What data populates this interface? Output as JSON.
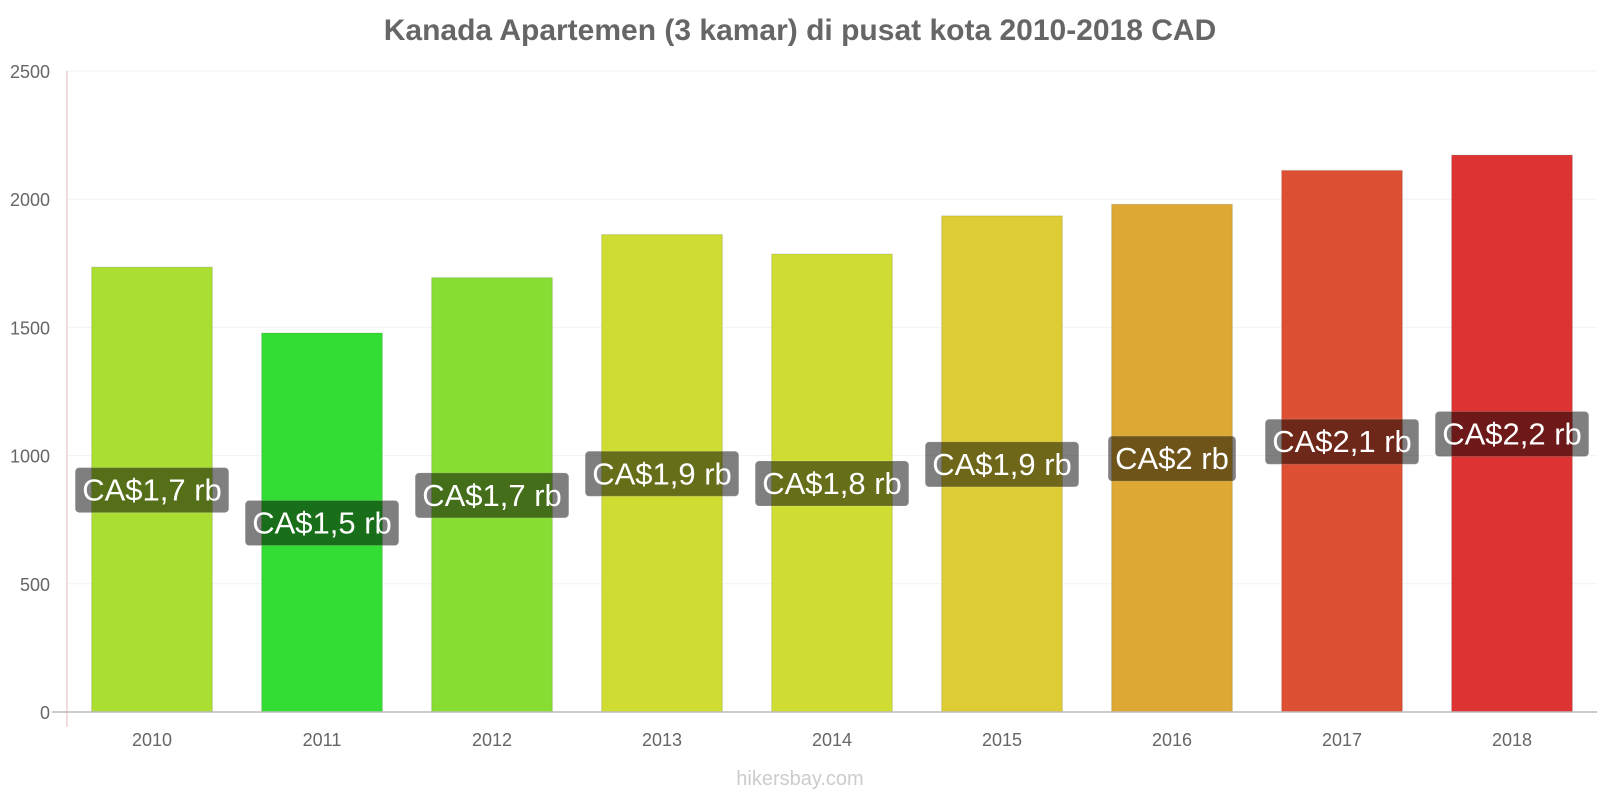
{
  "chart_data": {
    "type": "bar",
    "title": "Kanada Apartemen (3 kamar) di pusat kota 2010-2018 CAD",
    "categories": [
      "2010",
      "2011",
      "2012",
      "2013",
      "2014",
      "2015",
      "2016",
      "2017",
      "2018"
    ],
    "values": [
      1735,
      1478,
      1694,
      1862,
      1786,
      1935,
      1980,
      2112,
      2172
    ],
    "data_labels": [
      "CA$1,7 rb",
      "CA$1,5 rb",
      "CA$1,7 rb",
      "CA$1,9 rb",
      "CA$1,8 rb",
      "CA$1,9 rb",
      "CA$2 rb",
      "CA$2,1 rb",
      "CA$2,2 rb"
    ],
    "colors": [
      "#aade33",
      "#33dd33",
      "#88dd33",
      "#cfdd33",
      "#cfdd33",
      "#ddcc33",
      "#dda833",
      "#dd5033",
      "#dd3333"
    ],
    "yticks": [
      0,
      500,
      1000,
      1500,
      2000,
      2500
    ],
    "ylim": [
      0,
      2500
    ],
    "xlabel": "",
    "ylabel": "",
    "grid": true,
    "legend": "none"
  },
  "watermark": "hikersbay.com"
}
